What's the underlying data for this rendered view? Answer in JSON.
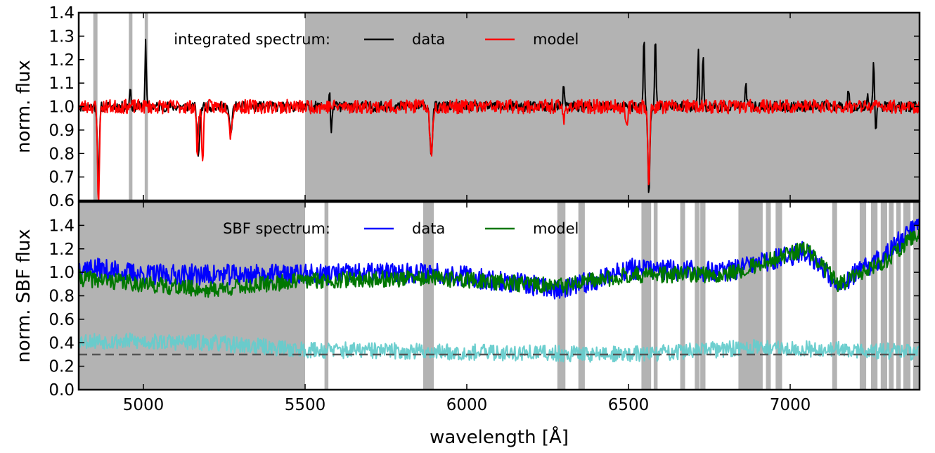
{
  "chart_data": [
    {
      "type": "line",
      "panel": "top",
      "xlim": [
        4800,
        7400
      ],
      "ylim": [
        0.6,
        1.4
      ],
      "ylabel": "norm. flux",
      "xlabel": "",
      "yticks": [
        "0.6",
        "0.7",
        "0.8",
        "0.9",
        "1.0",
        "1.1",
        "1.2",
        "1.3",
        "1.4"
      ],
      "legend": {
        "title": "integrated spectrum:",
        "placement": "top-center"
      },
      "masked_regions": [
        [
          4845,
          4858
        ],
        [
          4955,
          4966
        ],
        [
          5004,
          5014
        ],
        [
          5500,
          7400
        ]
      ],
      "series": [
        {
          "name": "data",
          "color": "#000000",
          "baseline": 1.0,
          "noise": 0.022,
          "seed": 11,
          "features": [
            {
              "x": 4861,
              "d": -0.32,
              "w": 3
            },
            {
              "x": 4959,
              "d": 0.09,
              "w": 2
            },
            {
              "x": 5007,
              "d": 0.27,
              "w": 2
            },
            {
              "x": 5170,
              "d": -0.2,
              "w": 4
            },
            {
              "x": 5270,
              "d": -0.12,
              "w": 4
            },
            {
              "x": 5577,
              "d": 0.1,
              "w": 2
            },
            {
              "x": 5580,
              "d": -0.16,
              "w": 2
            },
            {
              "x": 5890,
              "d": -0.2,
              "w": 4
            },
            {
              "x": 6300,
              "d": 0.1,
              "w": 2
            },
            {
              "x": 6548,
              "d": 0.3,
              "w": 2
            },
            {
              "x": 6563,
              "d": -0.36,
              "w": 3
            },
            {
              "x": 6583,
              "d": 0.32,
              "w": 2
            },
            {
              "x": 6716,
              "d": 0.26,
              "w": 2
            },
            {
              "x": 6731,
              "d": 0.22,
              "w": 2
            },
            {
              "x": 6863,
              "d": 0.08,
              "w": 3
            },
            {
              "x": 7180,
              "d": 0.08,
              "w": 2
            },
            {
              "x": 7240,
              "d": 0.06,
              "w": 2
            },
            {
              "x": 7258,
              "d": 0.21,
              "w": 2
            },
            {
              "x": 7265,
              "d": -0.1,
              "w": 2
            }
          ]
        },
        {
          "name": "model",
          "color": "#ff0000",
          "baseline": 1.0,
          "noise": 0.03,
          "seed": 23,
          "features": [
            {
              "x": 4861,
              "d": -0.4,
              "w": 3
            },
            {
              "x": 5167,
              "d": -0.2,
              "w": 3
            },
            {
              "x": 5183,
              "d": -0.22,
              "w": 3
            },
            {
              "x": 5270,
              "d": -0.12,
              "w": 4
            },
            {
              "x": 5890,
              "d": -0.22,
              "w": 4
            },
            {
              "x": 6300,
              "d": -0.06,
              "w": 3
            },
            {
              "x": 6495,
              "d": -0.1,
              "w": 3
            },
            {
              "x": 6563,
              "d": -0.36,
              "w": 3
            }
          ]
        }
      ]
    },
    {
      "type": "line",
      "panel": "bottom",
      "xlim": [
        4800,
        7400
      ],
      "ylim": [
        0.0,
        1.6
      ],
      "ylabel": "norm. SBF flux",
      "xlabel": "wavelength [Å]",
      "xticks": [
        "5000",
        "5500",
        "6000",
        "6500",
        "7000"
      ],
      "yticks": [
        "0.0",
        "0.2",
        "0.4",
        "0.6",
        "0.8",
        "1.0",
        "1.2",
        "1.4"
      ],
      "legend": {
        "title": "SBF spectrum:",
        "placement": "top-center"
      },
      "masked_regions": [
        [
          4800,
          5500
        ],
        [
          5560,
          5572
        ],
        [
          5865,
          5898
        ],
        [
          6280,
          6305
        ],
        [
          6345,
          6365
        ],
        [
          6540,
          6570
        ],
        [
          6578,
          6590
        ],
        [
          6660,
          6675
        ],
        [
          6705,
          6720
        ],
        [
          6722,
          6738
        ],
        [
          6840,
          6915
        ],
        [
          6925,
          6940
        ],
        [
          6955,
          6975
        ],
        [
          7130,
          7145
        ],
        [
          7215,
          7235
        ],
        [
          7250,
          7270
        ],
        [
          7280,
          7300
        ],
        [
          7305,
          7320
        ],
        [
          7328,
          7342
        ],
        [
          7350,
          7372
        ],
        [
          7380,
          7400
        ]
      ],
      "reference_line": {
        "y": 0.3,
        "color": "#555555",
        "style": "dashed"
      },
      "series": [
        {
          "name": "data",
          "color": "#0000ff",
          "noise": 0.09,
          "seed": 37,
          "trend": [
            [
              4800,
              1.05
            ],
            [
              5000,
              0.98
            ],
            [
              5500,
              0.98
            ],
            [
              5900,
              1.0
            ],
            [
              6300,
              0.85
            ],
            [
              6500,
              1.03
            ],
            [
              6800,
              1.0
            ],
            [
              7050,
              1.18
            ],
            [
              7150,
              0.9
            ],
            [
              7300,
              1.15
            ],
            [
              7400,
              1.45
            ]
          ]
        },
        {
          "name": "model",
          "color": "#007700",
          "noise": 0.07,
          "seed": 41,
          "trend": [
            [
              4800,
              0.95
            ],
            [
              5000,
              0.9
            ],
            [
              5200,
              0.85
            ],
            [
              5500,
              0.93
            ],
            [
              5900,
              0.95
            ],
            [
              6300,
              0.88
            ],
            [
              6500,
              0.98
            ],
            [
              6800,
              0.98
            ],
            [
              7050,
              1.2
            ],
            [
              7150,
              0.9
            ],
            [
              7300,
              1.1
            ],
            [
              7400,
              1.35
            ]
          ]
        },
        {
          "color": "#66cccc",
          "noise": 0.07,
          "seed": 53,
          "trend": [
            [
              4800,
              0.42
            ],
            [
              5200,
              0.4
            ],
            [
              5500,
              0.34
            ],
            [
              6000,
              0.32
            ],
            [
              6500,
              0.3
            ],
            [
              6900,
              0.36
            ],
            [
              7400,
              0.32
            ]
          ]
        }
      ]
    }
  ]
}
